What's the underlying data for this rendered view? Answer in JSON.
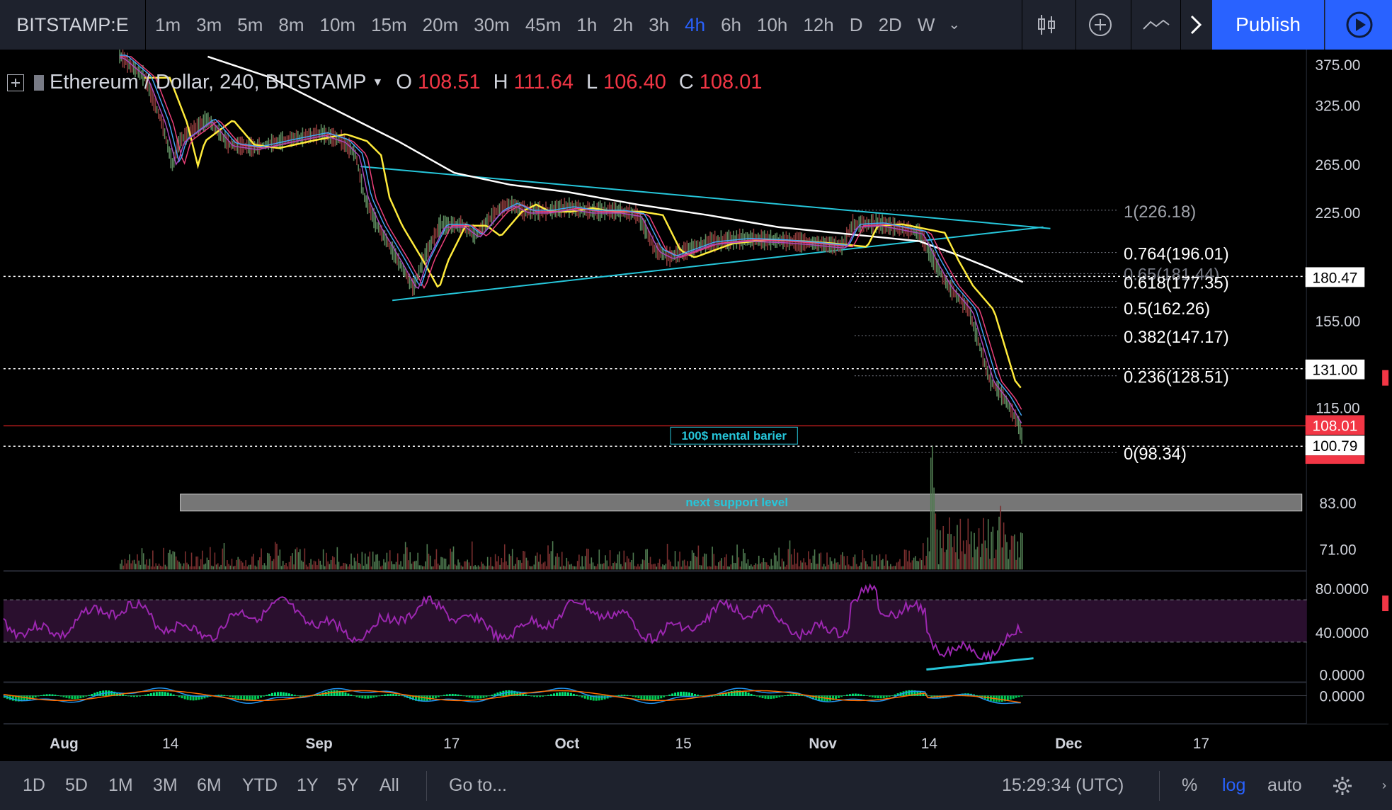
{
  "toolbar": {
    "symbol": "BITSTAMP:E",
    "intervals": [
      "1m",
      "3m",
      "5m",
      "8m",
      "10m",
      "15m",
      "20m",
      "30m",
      "45m",
      "1h",
      "2h",
      "3h",
      "4h",
      "6h",
      "10h",
      "12h",
      "D",
      "2D",
      "W"
    ],
    "active_interval": "4h",
    "publish_label": "Publish"
  },
  "legend": {
    "title": "Ethereum / Dollar, 240, BITSTAMP",
    "o_label": "O",
    "o_value": "108.51",
    "h_label": "H",
    "h_value": "111.64",
    "l_label": "L",
    "l_value": "106.40",
    "c_label": "C",
    "c_value": "108.01"
  },
  "price_axis": {
    "labels": [
      "375.00",
      "325.00",
      "265.00",
      "225.00",
      "180.47",
      "155.00",
      "131.00",
      "115.00",
      "108.01",
      "100.79",
      "83.00",
      "71.00"
    ],
    "current_price": "108.01",
    "log_scale": true
  },
  "fib_levels": [
    "1(226.18)",
    "0.764(196.01)",
    "0.65(181.44)",
    "0.618(177.35)",
    "0.5(162.26)",
    "0.382(147.17)",
    "0.236(128.51)",
    "0(98.34)"
  ],
  "annotations": {
    "mental_barrier": "100$ mental barier",
    "support": "next support level"
  },
  "rsi_axis": [
    "80.0000",
    "40.0000",
    "0.0000"
  ],
  "macd_axis": [
    "0.0000"
  ],
  "time_axis": [
    "Aug",
    "14",
    "Sep",
    "17",
    "Oct",
    "15",
    "Nov",
    "14",
    "Dec",
    "17"
  ],
  "bottombar": {
    "ranges": [
      "1D",
      "5D",
      "1M",
      "3M",
      "6M",
      "YTD",
      "1Y",
      "5Y",
      "All"
    ],
    "goto": "Go to...",
    "clock": "15:29:34 (UTC)",
    "percent": "%",
    "log": "log",
    "auto": "auto"
  },
  "colors": {
    "background": "#000000",
    "toolbar": "#1e222d",
    "accent": "#2962ff",
    "price_red": "#f23645",
    "trend_cyan": "#26c6da",
    "ema_yellow": "#ffeb3b",
    "ma_white": "#ffffff",
    "rsi_purple": "#9c27b0"
  }
}
